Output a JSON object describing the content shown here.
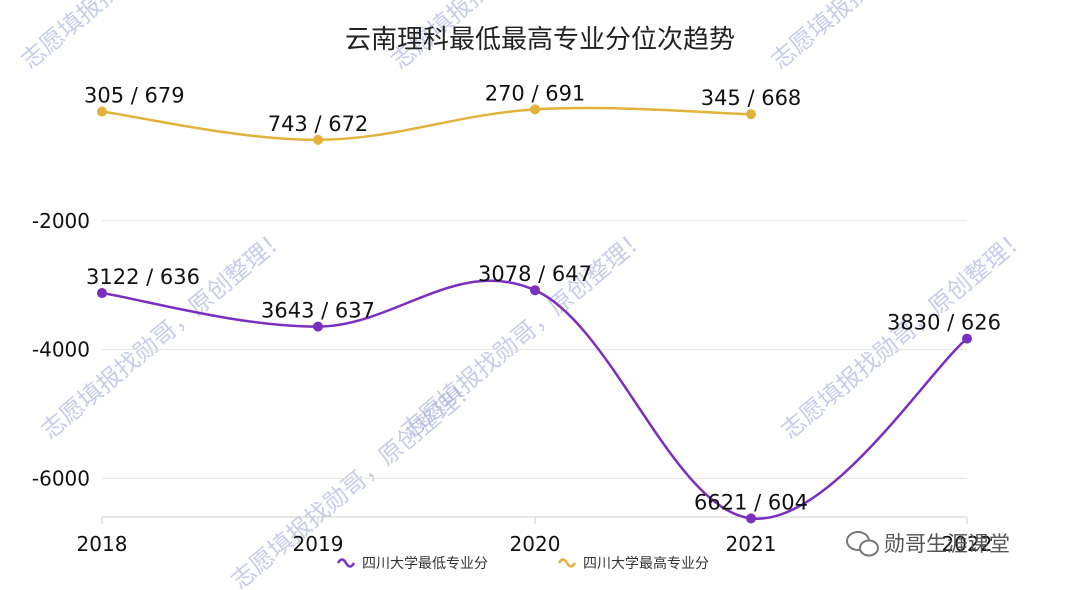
{
  "watermark": "志愿填报找勋哥，原创整理！",
  "brand": {
    "text": "勋哥生涯课堂"
  },
  "chart_data": {
    "type": "line",
    "title": "云南理科最低最高专业分位次趋势",
    "categories": [
      "2018",
      "2019",
      "2020",
      "2021",
      "2022"
    ],
    "ylim": [
      -6600,
      0
    ],
    "yticks": [
      -2000,
      -4000,
      -6000
    ],
    "grid": true,
    "legend_position": "bottom",
    "series": [
      {
        "name": "四川大学最低专业分",
        "color": "#7b2fbe",
        "values": [
          -3122,
          -3643,
          -3078,
          -6621,
          -3830
        ],
        "labels": [
          "3122 / 636",
          "3643 / 637",
          "3078 / 647",
          "6621 / 604",
          "3830 / 626"
        ]
      },
      {
        "name": "四川大学最高专业分",
        "color": "#e2b23c",
        "values": [
          -305,
          -743,
          -270,
          -345,
          null
        ],
        "labels": [
          "305 / 679",
          "743 / 672",
          "270 / 691",
          "345 / 668",
          null
        ]
      }
    ]
  }
}
